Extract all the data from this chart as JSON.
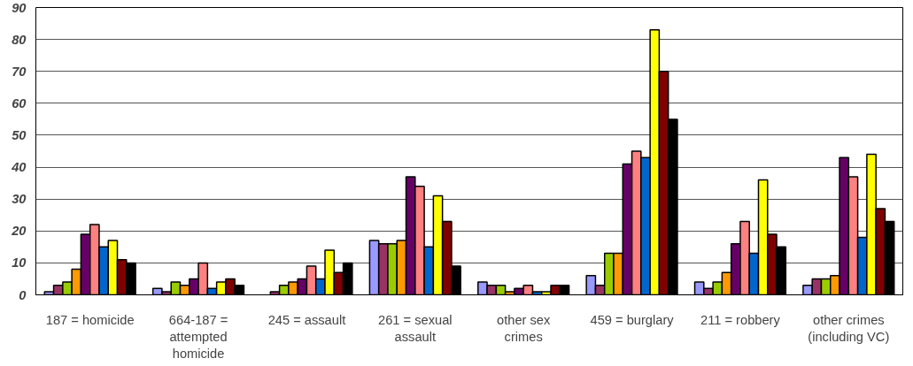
{
  "chart_data": {
    "type": "bar",
    "categories": [
      "187 = homicide",
      "664-187 = attempted homicide",
      "245 = assault",
      "261 = sexual assault",
      "other sex crimes",
      "459 = burglary",
      "211 = robbery",
      "other crimes (including VC)"
    ],
    "series": [
      {
        "color": "#9999ff",
        "values": [
          1,
          2,
          null,
          17,
          4,
          6,
          4,
          3
        ]
      },
      {
        "color": "#993366",
        "values": [
          3,
          1,
          1,
          16,
          3,
          3,
          2,
          5
        ]
      },
      {
        "color": "#99cc00",
        "values": [
          4,
          4,
          3,
          16,
          3,
          13,
          4,
          5
        ]
      },
      {
        "color": "#ff9900",
        "values": [
          8,
          3,
          4,
          17,
          1,
          13,
          7,
          6
        ]
      },
      {
        "color": "#660066",
        "values": [
          19,
          5,
          5,
          37,
          2,
          41,
          16,
          43
        ]
      },
      {
        "color": "#ff8080",
        "values": [
          22,
          10,
          9,
          34,
          3,
          45,
          23,
          37
        ]
      },
      {
        "color": "#0066cc",
        "values": [
          15,
          2,
          5,
          15,
          1,
          43,
          13,
          18
        ]
      },
      {
        "color": "#ffff00",
        "values": [
          17,
          4,
          14,
          31,
          1,
          83,
          36,
          44
        ]
      },
      {
        "color": "#800000",
        "values": [
          11,
          5,
          7,
          23,
          3,
          70,
          19,
          27
        ]
      },
      {
        "color": "#000000",
        "values": [
          10,
          3,
          10,
          9,
          3,
          55,
          15,
          23
        ]
      }
    ],
    "ylim": [
      0,
      90
    ],
    "yticks": [
      0,
      10,
      20,
      30,
      40,
      50,
      60,
      70,
      80,
      90
    ],
    "grid": "y"
  }
}
